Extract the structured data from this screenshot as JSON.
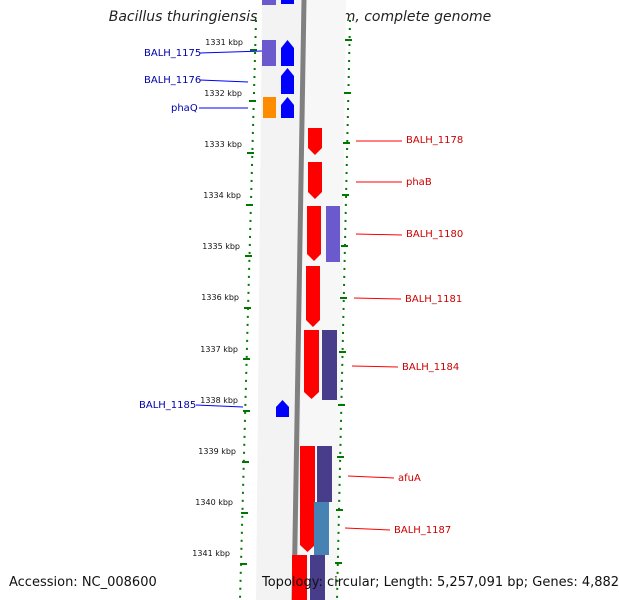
{
  "title": "Bacillus thuringiensis str. Al Hakam, complete genome",
  "footer": {
    "accession": "Accession: NC_008600",
    "topology": "Topology: circular; Length: 5,257,091 bp; Genes: 4,882"
  },
  "ticks": [
    "1331 kbp",
    "1332 kbp",
    "1333 kbp",
    "1334 kbp",
    "1335 kbp",
    "1336 kbp",
    "1337 kbp",
    "1338 kbp",
    "1339 kbp",
    "1340 kbp",
    "1341 kbp"
  ],
  "left_labels": [
    "BALH_1175",
    "BALH_1176",
    "phaQ",
    "BALH_1185"
  ],
  "right_labels": [
    "BALH_1178",
    "phaB",
    "BALH_1180",
    "BALH_1181",
    "BALH_1184",
    "afuA",
    "BALH_1187"
  ],
  "colors": {
    "forward": "#ff0000",
    "reverse": "#0000ff",
    "cog": "#6a5acd",
    "orange": "#ff8c00",
    "teal": "#4682b4",
    "backbone": "#808080",
    "tick": "#007700",
    "left_label": "#0000aa",
    "right_label": "#cc0000"
  }
}
